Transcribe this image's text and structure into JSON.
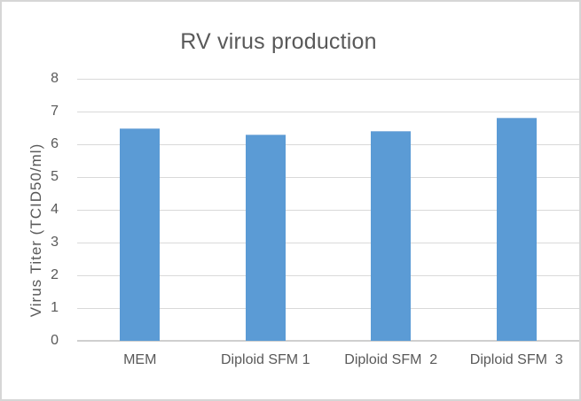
{
  "chart_data": {
    "type": "bar",
    "title": "RV virus production",
    "categories": [
      "MEM",
      "Diploid SFM 1",
      "Diploid SFM  2",
      "Diploid SFM  3"
    ],
    "values": [
      6.5,
      6.3,
      6.4,
      6.8
    ],
    "xlabel": "",
    "ylabel": "Virus Titer (TCID50/ml)",
    "ylim": [
      0,
      8
    ],
    "yticks": [
      0,
      1,
      2,
      3,
      4,
      5,
      6,
      7,
      8
    ],
    "ytick_step": 1,
    "grid": true,
    "legend": false,
    "colors": {
      "bar_fill": "#5B9BD5",
      "bar_edge": "#8FB8E0",
      "text": "#595959",
      "gridline": "#D9D9D9",
      "axis_line": "#CFCFCF",
      "chart_border": "#D6D6D6",
      "background": "#FFFFFF"
    }
  }
}
